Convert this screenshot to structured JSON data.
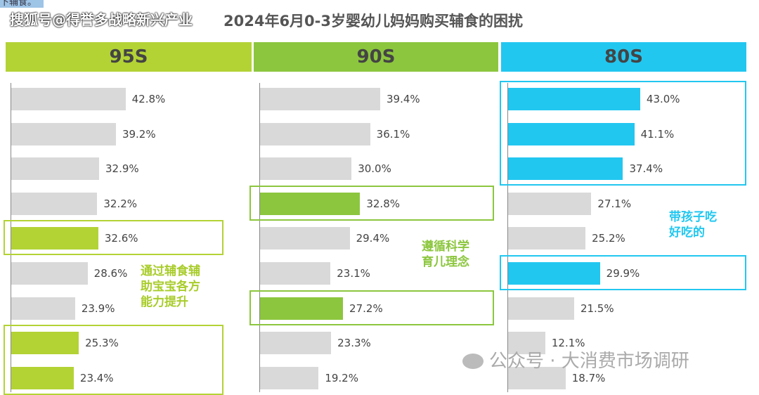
{
  "top_note": "下辅食。",
  "watermark_top": "搜狐号@得誉多战略新兴产业",
  "watermark_bottom": "公众号 · 大消费市场调研",
  "chart_data": {
    "type": "bar",
    "title": "2024年6月0-3岁婴幼儿妈妈购买辅食的困扰",
    "panels": [
      {
        "name": "95S",
        "color": "#b3d335",
        "values": [
          42.8,
          39.2,
          32.9,
          32.2,
          32.6,
          28.6,
          23.9,
          25.3,
          23.4
        ],
        "highlight": [
          4,
          7,
          8
        ],
        "annotation": [
          "通过辅食辅",
          "助宝宝各方",
          "能力提升"
        ],
        "boxes": [
          [
            4,
            4
          ],
          [
            7,
            8
          ]
        ]
      },
      {
        "name": "90S",
        "color": "#8cc63e",
        "values": [
          39.4,
          36.1,
          30.0,
          32.8,
          29.4,
          23.1,
          27.2,
          23.3,
          19.2
        ],
        "highlight": [
          3,
          6
        ],
        "annotation": [
          "遵循科学",
          "育儿理念"
        ],
        "boxes": [
          [
            3,
            3
          ],
          [
            6,
            6
          ]
        ]
      },
      {
        "name": "80S",
        "color": "#22c7f0",
        "values": [
          43.0,
          41.1,
          37.4,
          27.1,
          25.2,
          29.9,
          21.5,
          12.1,
          18.7
        ],
        "highlight": [
          0,
          1,
          2,
          5
        ],
        "annotation": [
          "带孩子吃",
          "好吃的"
        ],
        "boxes": [
          [
            0,
            2
          ],
          [
            5,
            5
          ]
        ]
      }
    ]
  }
}
